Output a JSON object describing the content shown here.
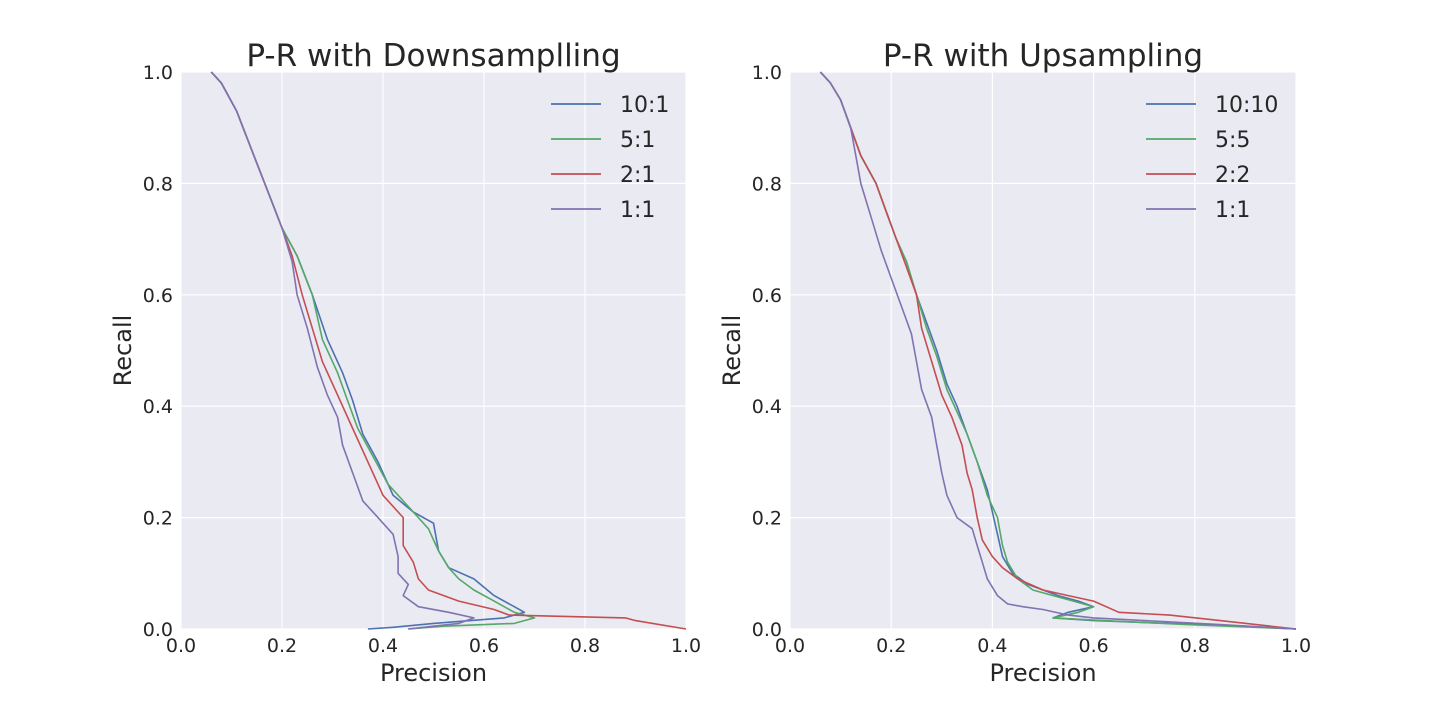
{
  "colors": {
    "background": "#eaeaf2",
    "grid": "#ffffff",
    "series": [
      "#4c72b0",
      "#55a868",
      "#c44e52",
      "#8172b2"
    ]
  },
  "chart_data": [
    {
      "type": "line",
      "title": "P-R with Downsamplling",
      "xlabel": "Precision",
      "ylabel": "Recall",
      "xlim": [
        0,
        1
      ],
      "ylim": [
        0,
        1
      ],
      "xticks": [
        "0.0",
        "0.2",
        "0.4",
        "0.6",
        "0.8",
        "1.0"
      ],
      "yticks": [
        "0.0",
        "0.2",
        "0.4",
        "0.6",
        "0.8",
        "1.0"
      ],
      "grid": true,
      "legend_position": "top-right",
      "series": [
        {
          "name": "10:1",
          "color": "#4c72b0",
          "points": [
            [
              0.06,
              1.0
            ],
            [
              0.08,
              0.98
            ],
            [
              0.11,
              0.93
            ],
            [
              0.14,
              0.86
            ],
            [
              0.17,
              0.79
            ],
            [
              0.2,
              0.72
            ],
            [
              0.23,
              0.67
            ],
            [
              0.26,
              0.6
            ],
            [
              0.29,
              0.52
            ],
            [
              0.32,
              0.46
            ],
            [
              0.34,
              0.41
            ],
            [
              0.36,
              0.35
            ],
            [
              0.39,
              0.3
            ],
            [
              0.42,
              0.24
            ],
            [
              0.46,
              0.21
            ],
            [
              0.5,
              0.19
            ],
            [
              0.51,
              0.14
            ],
            [
              0.53,
              0.11
            ],
            [
              0.58,
              0.09
            ],
            [
              0.62,
              0.06
            ],
            [
              0.66,
              0.04
            ],
            [
              0.68,
              0.03
            ],
            [
              0.64,
              0.02
            ],
            [
              0.5,
              0.01
            ],
            [
              0.42,
              0.003
            ],
            [
              0.37,
              0.0
            ]
          ]
        },
        {
          "name": "5:1",
          "color": "#55a868",
          "points": [
            [
              0.06,
              1.0
            ],
            [
              0.08,
              0.98
            ],
            [
              0.11,
              0.93
            ],
            [
              0.14,
              0.86
            ],
            [
              0.17,
              0.79
            ],
            [
              0.2,
              0.72
            ],
            [
              0.23,
              0.67
            ],
            [
              0.26,
              0.6
            ],
            [
              0.28,
              0.52
            ],
            [
              0.31,
              0.46
            ],
            [
              0.33,
              0.41
            ],
            [
              0.35,
              0.36
            ],
            [
              0.38,
              0.31
            ],
            [
              0.41,
              0.26
            ],
            [
              0.45,
              0.22
            ],
            [
              0.49,
              0.18
            ],
            [
              0.51,
              0.14
            ],
            [
              0.53,
              0.11
            ],
            [
              0.55,
              0.09
            ],
            [
              0.58,
              0.07
            ],
            [
              0.62,
              0.05
            ],
            [
              0.66,
              0.03
            ],
            [
              0.7,
              0.02
            ],
            [
              0.66,
              0.01
            ],
            [
              0.52,
              0.005
            ],
            [
              0.45,
              0.0
            ]
          ]
        },
        {
          "name": "2:1",
          "color": "#c44e52",
          "points": [
            [
              0.06,
              1.0
            ],
            [
              0.08,
              0.98
            ],
            [
              0.11,
              0.93
            ],
            [
              0.14,
              0.86
            ],
            [
              0.17,
              0.79
            ],
            [
              0.2,
              0.72
            ],
            [
              0.22,
              0.67
            ],
            [
              0.24,
              0.6
            ],
            [
              0.26,
              0.54
            ],
            [
              0.28,
              0.48
            ],
            [
              0.31,
              0.42
            ],
            [
              0.34,
              0.36
            ],
            [
              0.37,
              0.3
            ],
            [
              0.4,
              0.24
            ],
            [
              0.44,
              0.2
            ],
            [
              0.44,
              0.15
            ],
            [
              0.46,
              0.12
            ],
            [
              0.47,
              0.09
            ],
            [
              0.49,
              0.07
            ],
            [
              0.55,
              0.05
            ],
            [
              0.62,
              0.035
            ],
            [
              0.65,
              0.025
            ],
            [
              0.78,
              0.022
            ],
            [
              0.88,
              0.02
            ],
            [
              0.9,
              0.015
            ],
            [
              1.0,
              0.0
            ]
          ]
        },
        {
          "name": "1:1",
          "color": "#8172b2",
          "points": [
            [
              0.06,
              1.0
            ],
            [
              0.08,
              0.98
            ],
            [
              0.11,
              0.93
            ],
            [
              0.14,
              0.86
            ],
            [
              0.17,
              0.79
            ],
            [
              0.2,
              0.72
            ],
            [
              0.22,
              0.66
            ],
            [
              0.23,
              0.6
            ],
            [
              0.25,
              0.54
            ],
            [
              0.27,
              0.47
            ],
            [
              0.29,
              0.42
            ],
            [
              0.31,
              0.38
            ],
            [
              0.32,
              0.33
            ],
            [
              0.34,
              0.28
            ],
            [
              0.36,
              0.23
            ],
            [
              0.39,
              0.2
            ],
            [
              0.42,
              0.17
            ],
            [
              0.43,
              0.13
            ],
            [
              0.43,
              0.1
            ],
            [
              0.45,
              0.08
            ],
            [
              0.44,
              0.06
            ],
            [
              0.47,
              0.04
            ],
            [
              0.53,
              0.03
            ],
            [
              0.58,
              0.02
            ],
            [
              0.55,
              0.01
            ],
            [
              0.5,
              0.005
            ],
            [
              0.45,
              0.0
            ]
          ]
        }
      ]
    },
    {
      "type": "line",
      "title": "P-R with Upsampling",
      "xlabel": "Precision",
      "ylabel": "Recall",
      "xlim": [
        0,
        1
      ],
      "ylim": [
        0,
        1
      ],
      "xticks": [
        "0.0",
        "0.2",
        "0.4",
        "0.6",
        "0.8",
        "1.0"
      ],
      "yticks": [
        "0.0",
        "0.2",
        "0.4",
        "0.6",
        "0.8",
        "1.0"
      ],
      "grid": true,
      "legend_position": "top-right",
      "series": [
        {
          "name": "10:10",
          "color": "#4c72b0",
          "points": [
            [
              0.06,
              1.0
            ],
            [
              0.08,
              0.98
            ],
            [
              0.1,
              0.95
            ],
            [
              0.12,
              0.9
            ],
            [
              0.14,
              0.85
            ],
            [
              0.17,
              0.8
            ],
            [
              0.19,
              0.75
            ],
            [
              0.21,
              0.7
            ],
            [
              0.23,
              0.66
            ],
            [
              0.25,
              0.6
            ],
            [
              0.27,
              0.55
            ],
            [
              0.29,
              0.5
            ],
            [
              0.31,
              0.44
            ],
            [
              0.33,
              0.4
            ],
            [
              0.35,
              0.35
            ],
            [
              0.37,
              0.3
            ],
            [
              0.39,
              0.25
            ],
            [
              0.4,
              0.21
            ],
            [
              0.41,
              0.17
            ],
            [
              0.42,
              0.13
            ],
            [
              0.44,
              0.1
            ],
            [
              0.47,
              0.08
            ],
            [
              0.5,
              0.07
            ],
            [
              0.53,
              0.06
            ],
            [
              0.57,
              0.05
            ],
            [
              0.6,
              0.04
            ],
            [
              0.55,
              0.03
            ],
            [
              0.52,
              0.02
            ],
            [
              0.6,
              0.015
            ],
            [
              0.75,
              0.01
            ],
            [
              0.9,
              0.005
            ],
            [
              1.0,
              0.0
            ]
          ]
        },
        {
          "name": "5:5",
          "color": "#55a868",
          "points": [
            [
              0.06,
              1.0
            ],
            [
              0.08,
              0.98
            ],
            [
              0.1,
              0.95
            ],
            [
              0.12,
              0.9
            ],
            [
              0.14,
              0.85
            ],
            [
              0.17,
              0.8
            ],
            [
              0.19,
              0.75
            ],
            [
              0.21,
              0.7
            ],
            [
              0.23,
              0.66
            ],
            [
              0.25,
              0.6
            ],
            [
              0.27,
              0.54
            ],
            [
              0.29,
              0.49
            ],
            [
              0.31,
              0.43
            ],
            [
              0.33,
              0.39
            ],
            [
              0.35,
              0.35
            ],
            [
              0.37,
              0.3
            ],
            [
              0.39,
              0.24
            ],
            [
              0.41,
              0.2
            ],
            [
              0.42,
              0.15
            ],
            [
              0.43,
              0.12
            ],
            [
              0.45,
              0.09
            ],
            [
              0.48,
              0.07
            ],
            [
              0.52,
              0.06
            ],
            [
              0.56,
              0.05
            ],
            [
              0.6,
              0.04
            ],
            [
              0.57,
              0.03
            ],
            [
              0.52,
              0.02
            ],
            [
              0.62,
              0.015
            ],
            [
              0.78,
              0.008
            ],
            [
              1.0,
              0.0
            ]
          ]
        },
        {
          "name": "2:2",
          "color": "#c44e52",
          "points": [
            [
              0.06,
              1.0
            ],
            [
              0.08,
              0.98
            ],
            [
              0.1,
              0.95
            ],
            [
              0.12,
              0.9
            ],
            [
              0.14,
              0.85
            ],
            [
              0.17,
              0.8
            ],
            [
              0.19,
              0.75
            ],
            [
              0.21,
              0.7
            ],
            [
              0.23,
              0.65
            ],
            [
              0.25,
              0.6
            ],
            [
              0.26,
              0.54
            ],
            [
              0.28,
              0.48
            ],
            [
              0.3,
              0.42
            ],
            [
              0.32,
              0.38
            ],
            [
              0.34,
              0.33
            ],
            [
              0.35,
              0.28
            ],
            [
              0.36,
              0.25
            ],
            [
              0.37,
              0.2
            ],
            [
              0.38,
              0.16
            ],
            [
              0.4,
              0.13
            ],
            [
              0.42,
              0.11
            ],
            [
              0.45,
              0.09
            ],
            [
              0.5,
              0.07
            ],
            [
              0.55,
              0.06
            ],
            [
              0.6,
              0.05
            ],
            [
              0.65,
              0.03
            ],
            [
              0.75,
              0.025
            ],
            [
              0.85,
              0.015
            ],
            [
              1.0,
              0.0
            ]
          ]
        },
        {
          "name": "1:1",
          "color": "#8172b2",
          "points": [
            [
              0.06,
              1.0
            ],
            [
              0.08,
              0.98
            ],
            [
              0.1,
              0.95
            ],
            [
              0.12,
              0.9
            ],
            [
              0.13,
              0.85
            ],
            [
              0.14,
              0.8
            ],
            [
              0.16,
              0.74
            ],
            [
              0.18,
              0.68
            ],
            [
              0.2,
              0.63
            ],
            [
              0.22,
              0.58
            ],
            [
              0.24,
              0.53
            ],
            [
              0.25,
              0.48
            ],
            [
              0.26,
              0.43
            ],
            [
              0.28,
              0.38
            ],
            [
              0.29,
              0.33
            ],
            [
              0.3,
              0.28
            ],
            [
              0.31,
              0.24
            ],
            [
              0.33,
              0.2
            ],
            [
              0.36,
              0.18
            ],
            [
              0.37,
              0.15
            ],
            [
              0.38,
              0.12
            ],
            [
              0.39,
              0.09
            ],
            [
              0.41,
              0.06
            ],
            [
              0.43,
              0.045
            ],
            [
              0.46,
              0.04
            ],
            [
              0.5,
              0.035
            ],
            [
              0.55,
              0.025
            ],
            [
              0.6,
              0.02
            ],
            [
              0.7,
              0.015
            ],
            [
              0.85,
              0.008
            ],
            [
              1.0,
              0.0
            ]
          ]
        }
      ]
    }
  ]
}
